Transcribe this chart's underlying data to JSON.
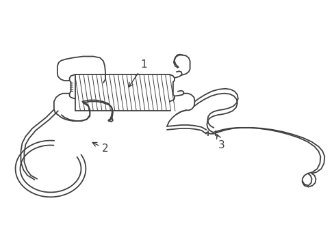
{
  "background_color": "#ffffff",
  "line_color": "#404040",
  "line_width": 1.3,
  "label1": "1",
  "label2": "2",
  "label3": "3"
}
